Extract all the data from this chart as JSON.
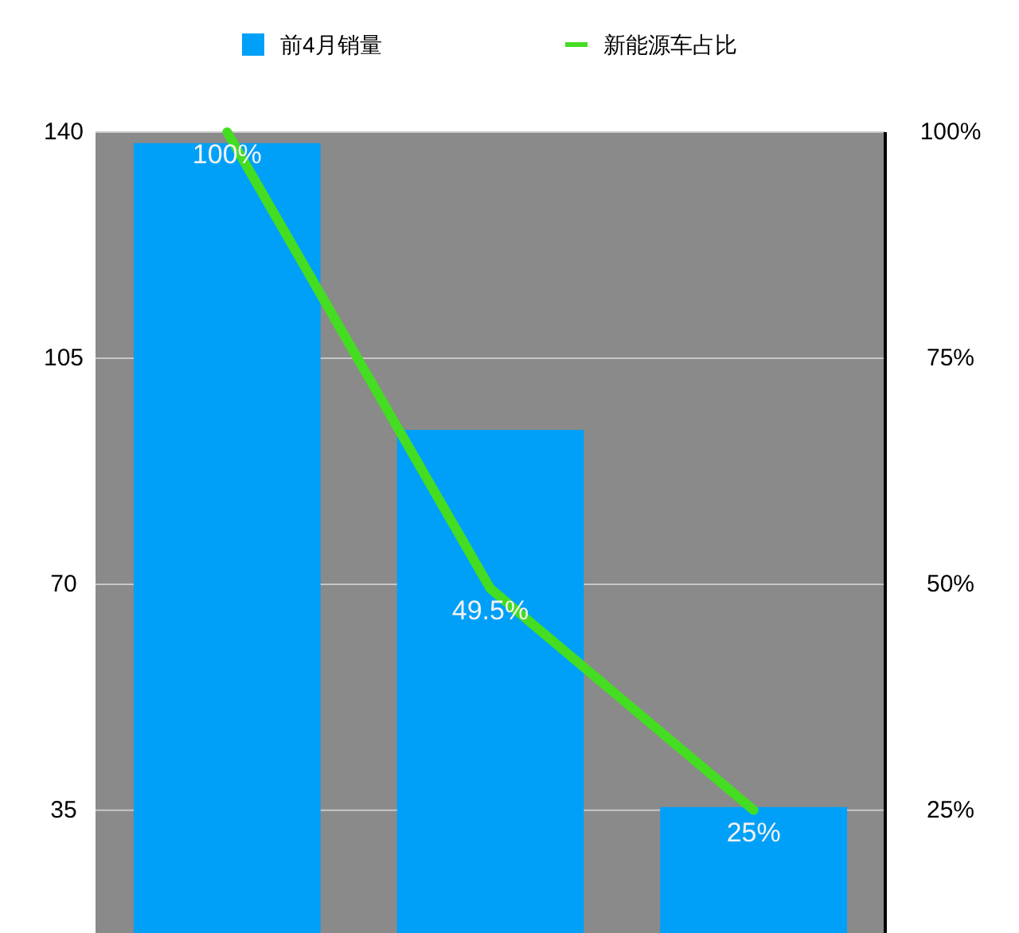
{
  "chart_data": {
    "type": "bar",
    "categories": [
      null,
      null,
      null
    ],
    "series": [
      {
        "name": "前4月销量",
        "color": "#00a0f8",
        "values": [
          138.3,
          93.9,
          35.5
        ]
      },
      {
        "name": "新能源车占比",
        "type": "line",
        "axis": "y2",
        "color": "#44dd22",
        "values": [
          100,
          49.5,
          25
        ],
        "value_labels": [
          "100%",
          "49.5%",
          "25%"
        ]
      }
    ],
    "ylim": [
      16,
      140
    ],
    "yticks": [
      35,
      70,
      105,
      140
    ],
    "y2lim": [
      11.4,
      100
    ],
    "y2ticks": [
      {
        "value": 25,
        "label": "25%"
      },
      {
        "value": 50,
        "label": "50%"
      },
      {
        "value": 75,
        "label": "75%"
      },
      {
        "value": 100,
        "label": "100%"
      }
    ],
    "grid": "y",
    "legend": "top"
  }
}
